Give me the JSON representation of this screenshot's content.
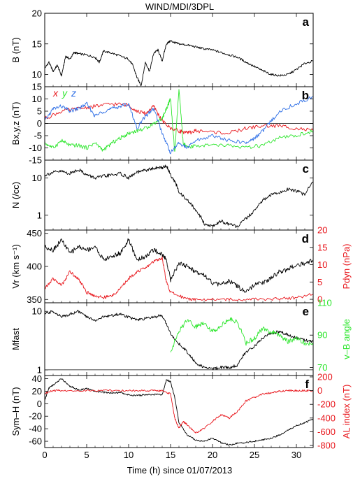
{
  "figure": {
    "title": "WIND/MDI/3DPL",
    "xlabel": "Time (h) since 01/07/2013",
    "x_ticks": [
      0,
      5,
      10,
      15,
      20,
      25,
      30
    ],
    "x_range": [
      0,
      32
    ]
  },
  "colors": {
    "black": "#000000",
    "red": "#e8151b",
    "green": "#2ee62e",
    "blue": "#2d6ee6"
  },
  "chart_data": [
    {
      "panel": "a",
      "type": "line",
      "ylabel": "B (nT)",
      "ylim": [
        8,
        20
      ],
      "y_ticks": [
        10,
        15,
        20
      ],
      "y_scale": "linear",
      "series": [
        {
          "color": "black",
          "x": [
            0,
            0.5,
            1,
            1.5,
            2,
            2.5,
            3,
            3.5,
            4,
            5,
            6,
            6.5,
            7,
            8,
            9,
            10,
            10.5,
            11,
            11.5,
            12,
            12.5,
            13,
            13.5,
            14,
            14.5,
            15,
            15.5,
            16,
            17,
            18,
            19,
            20,
            21,
            22,
            23,
            24,
            25,
            26,
            27,
            28,
            29,
            30,
            31,
            32
          ],
          "y": [
            11,
            12,
            10.5,
            11.5,
            9.8,
            13,
            12.5,
            13.6,
            13.4,
            13.2,
            12.8,
            12,
            13.8,
            13.5,
            13,
            12.5,
            11.5,
            9.5,
            8.2,
            12,
            10.5,
            13.5,
            14,
            12.2,
            15,
            15.5,
            15.2,
            15,
            14.8,
            14.5,
            14.2,
            14,
            13.6,
            13.2,
            12.8,
            12,
            11.3,
            10.6,
            10,
            9.8,
            10,
            10.8,
            11.8,
            12.2
          ]
        }
      ]
    },
    {
      "panel": "b",
      "type": "line",
      "ylabel": "Bx,y,z (nT)",
      "ylim": [
        -15,
        15
      ],
      "y_ticks": [
        -15,
        -10,
        -5,
        0,
        5,
        10,
        15
      ],
      "y_scale": "linear",
      "legend": [
        "x",
        "y",
        "z"
      ],
      "series": [
        {
          "name": "x",
          "color": "red",
          "x": [
            0,
            2,
            4,
            6,
            8,
            10,
            11,
            12,
            13,
            14,
            15,
            16,
            17,
            18,
            20,
            22,
            24,
            26,
            28,
            30,
            32
          ],
          "y": [
            2,
            5,
            6,
            7,
            8,
            7.5,
            5,
            4,
            7,
            1,
            -2,
            -3,
            -4,
            -3,
            -3.5,
            -4,
            -2,
            -1,
            -1,
            -2,
            -3
          ]
        },
        {
          "name": "y",
          "color": "green",
          "x": [
            0,
            1,
            2,
            3,
            4,
            5,
            6,
            7,
            8,
            9,
            10,
            11,
            12,
            13,
            14,
            14.5,
            15,
            15.5,
            16,
            16.5,
            17,
            18,
            20,
            22,
            24,
            26,
            28,
            30,
            32
          ],
          "y": [
            -8,
            -10,
            -7,
            -9,
            -9,
            -10,
            -8,
            -11,
            -8,
            -6,
            -4,
            -3,
            -2,
            0,
            2,
            6,
            10,
            -12,
            14,
            -8,
            -10,
            -9,
            -9,
            -9,
            -10,
            -9,
            -6,
            -5,
            -3
          ]
        },
        {
          "name": "z",
          "color": "blue",
          "x": [
            0,
            1,
            2,
            3,
            4,
            5,
            6,
            7,
            8,
            9,
            10,
            11,
            12,
            13,
            14,
            15,
            16,
            17,
            18,
            20,
            22,
            24,
            25,
            26,
            27,
            28,
            30,
            32
          ],
          "y": [
            1,
            6,
            7,
            5,
            6,
            8,
            3,
            5,
            6,
            7,
            8,
            -2,
            3,
            6,
            -4,
            -12,
            -8,
            -10,
            -7,
            -5,
            -7,
            -8,
            -6,
            -3,
            1,
            5,
            8,
            11
          ]
        }
      ]
    },
    {
      "panel": "c",
      "type": "line",
      "ylabel": "N (/cc)",
      "ylim": [
        0.4,
        30
      ],
      "y_ticks": [
        1,
        10
      ],
      "y_scale": "log",
      "series": [
        {
          "color": "black",
          "x": [
            0,
            1,
            2,
            3,
            4,
            5,
            6,
            7,
            8,
            9,
            10,
            11,
            12,
            13,
            14,
            14.5,
            15,
            15.5,
            16,
            17,
            18,
            19,
            20,
            21,
            22,
            23,
            24,
            25,
            26,
            27,
            28,
            29,
            30,
            31,
            32
          ],
          "y": [
            12,
            14,
            15,
            13,
            17,
            12,
            10,
            11,
            12,
            13,
            10,
            14,
            16,
            18,
            19,
            21,
            12,
            8,
            4,
            2.5,
            1.3,
            0.6,
            0.5,
            0.7,
            0.55,
            0.5,
            0.8,
            1.3,
            2.5,
            3.5,
            4,
            5,
            4.5,
            3.5,
            8
          ]
        }
      ]
    },
    {
      "panel": "d",
      "type": "line",
      "ylabel": "Vr (km s⁻¹)",
      "ylim": [
        345,
        455
      ],
      "y_ticks": [
        350,
        400,
        450
      ],
      "y_scale": "linear",
      "y2label": "Pdyn (nPa)",
      "y2lim": [
        -1,
        20
      ],
      "y2_ticks": [
        0,
        5,
        10,
        15,
        20
      ],
      "series": [
        {
          "axis": "left",
          "color": "black",
          "x": [
            0,
            1,
            2,
            3,
            4,
            5,
            6,
            7,
            8,
            9,
            10,
            11,
            12,
            13,
            14,
            14.5,
            15,
            16,
            17,
            18,
            19,
            20,
            21,
            22,
            23,
            24,
            25,
            26,
            27,
            28,
            29,
            30,
            31,
            32
          ],
          "y": [
            430,
            425,
            440,
            420,
            430,
            425,
            430,
            410,
            415,
            420,
            440,
            410,
            415,
            425,
            418,
            410,
            380,
            405,
            400,
            392,
            388,
            375,
            372,
            378,
            370,
            360,
            372,
            375,
            383,
            392,
            396,
            402,
            405,
            410
          ]
        },
        {
          "axis": "right",
          "color": "red",
          "x": [
            0,
            1,
            2,
            3,
            4,
            5,
            6,
            7,
            8,
            9,
            10,
            11,
            12,
            13,
            14,
            14.5,
            15,
            16,
            17,
            18,
            20,
            22,
            24,
            26,
            28,
            30,
            32
          ],
          "y": [
            3,
            6,
            4,
            8,
            6,
            2,
            1,
            0.5,
            1,
            3,
            6,
            8,
            9,
            11,
            12,
            5,
            2,
            1,
            0.2,
            0,
            0,
            0,
            0,
            0,
            0.2,
            0.5,
            1.5
          ]
        }
      ]
    },
    {
      "panel": "e",
      "type": "line",
      "ylabel": "Mfast",
      "ylim": [
        0.8,
        14
      ],
      "y_ticks": [
        1,
        10
      ],
      "y_scale": "log",
      "y2label": "v–B angle",
      "y2lim": [
        65,
        110
      ],
      "y2_ticks": [
        70,
        90,
        110
      ],
      "series": [
        {
          "axis": "left",
          "color": "black",
          "x": [
            0,
            1,
            2,
            3,
            4,
            5,
            6,
            7,
            8,
            9,
            10,
            11,
            12,
            13,
            14,
            15,
            16,
            17,
            18,
            19,
            20,
            21,
            22,
            23,
            24,
            25,
            26,
            27,
            28,
            29,
            30,
            31,
            32
          ],
          "y": [
            9,
            10,
            8,
            9,
            10,
            8,
            7,
            8,
            8.5,
            9,
            8,
            7,
            7.5,
            8,
            8.5,
            4,
            2.8,
            2,
            1.3,
            1.1,
            1.05,
            1.1,
            1.1,
            1.2,
            2,
            2.5,
            3.5,
            4.2,
            4.5,
            4,
            3.5,
            3.2,
            3
          ]
        },
        {
          "axis": "right",
          "color": "green",
          "x": [
            15,
            16,
            17,
            18,
            19,
            20,
            21,
            22,
            23,
            24,
            25,
            26,
            27,
            28,
            29,
            30,
            31,
            32
          ],
          "y": [
            80,
            92,
            100,
            95,
            98,
            92,
            96,
            100,
            98,
            85,
            88,
            94,
            92,
            90,
            86,
            88,
            85,
            84
          ]
        }
      ]
    },
    {
      "panel": "f",
      "type": "line",
      "ylabel": "Sym–H (nT)",
      "ylim": [
        -70,
        45
      ],
      "y_ticks": [
        -60,
        -40,
        -20,
        0,
        20,
        40
      ],
      "y_scale": "linear",
      "y2label": "AL index (nT)",
      "y2lim": [
        -830,
        220
      ],
      "y2_ticks": [
        -800,
        -600,
        -400,
        -200,
        0,
        200
      ],
      "series": [
        {
          "axis": "left",
          "color": "black",
          "x": [
            0,
            0.5,
            1,
            2,
            3,
            4,
            5,
            6,
            7,
            8,
            9,
            10,
            11,
            12,
            13,
            14,
            14.5,
            15,
            15.5,
            16,
            17,
            18,
            19,
            20,
            21,
            22,
            23,
            24,
            25,
            26,
            27,
            28,
            29,
            30,
            31,
            32
          ],
          "y": [
            5,
            25,
            30,
            40,
            28,
            22,
            24,
            20,
            18,
            17,
            18,
            14,
            13,
            14,
            15,
            14,
            38,
            35,
            10,
            -30,
            -50,
            -58,
            -60,
            -55,
            -62,
            -66,
            -63,
            -62,
            -60,
            -58,
            -55,
            -50,
            -42,
            -35,
            -30,
            -25
          ]
        },
        {
          "axis": "right",
          "color": "red",
          "x": [
            0,
            1,
            2,
            4,
            6,
            8,
            10,
            12,
            13,
            14,
            15,
            15.5,
            16,
            16.5,
            17,
            18,
            19,
            20,
            21,
            22,
            23,
            24,
            25,
            26,
            27,
            28,
            29,
            30,
            31,
            32
          ],
          "y": [
            -40,
            0,
            0,
            0,
            0,
            0,
            0,
            0,
            0,
            0,
            -50,
            -400,
            -550,
            -450,
            -500,
            -620,
            -550,
            -450,
            -350,
            -400,
            -300,
            -150,
            -100,
            -50,
            -30,
            -10,
            0,
            0,
            0,
            0
          ]
        }
      ]
    }
  ]
}
